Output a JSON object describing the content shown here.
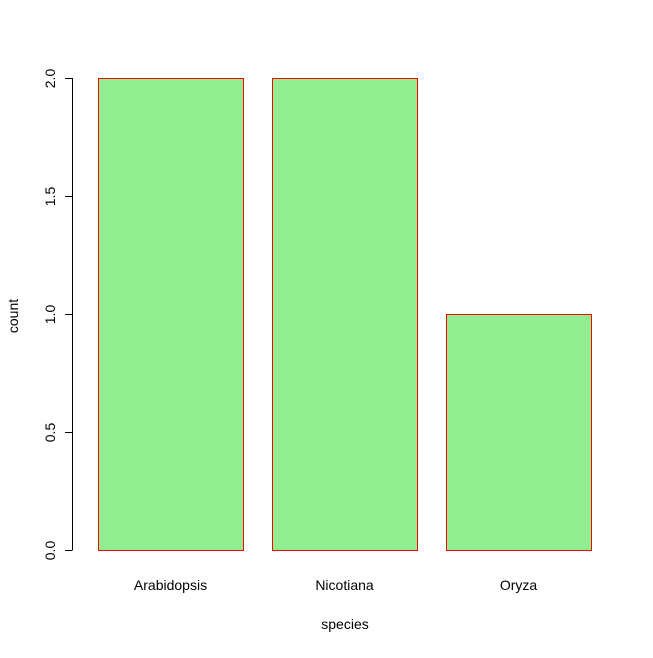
{
  "chart_data": {
    "type": "bar",
    "categories": [
      "Arabidopsis",
      "Nicotiana",
      "Oryza"
    ],
    "values": [
      2,
      2,
      1
    ],
    "xlabel": "species",
    "ylabel": "count",
    "ylim": [
      0,
      2
    ],
    "yticks": [
      "0.0",
      "0.5",
      "1.0",
      "1.5",
      "2.0"
    ],
    "ytick_values": [
      0,
      0.5,
      1.0,
      1.5,
      2.0
    ],
    "grid": false,
    "legend": "none",
    "colors": {
      "bar_fill": "#90EE90",
      "bar_border": "#FF0000",
      "axis": "#000000"
    }
  }
}
